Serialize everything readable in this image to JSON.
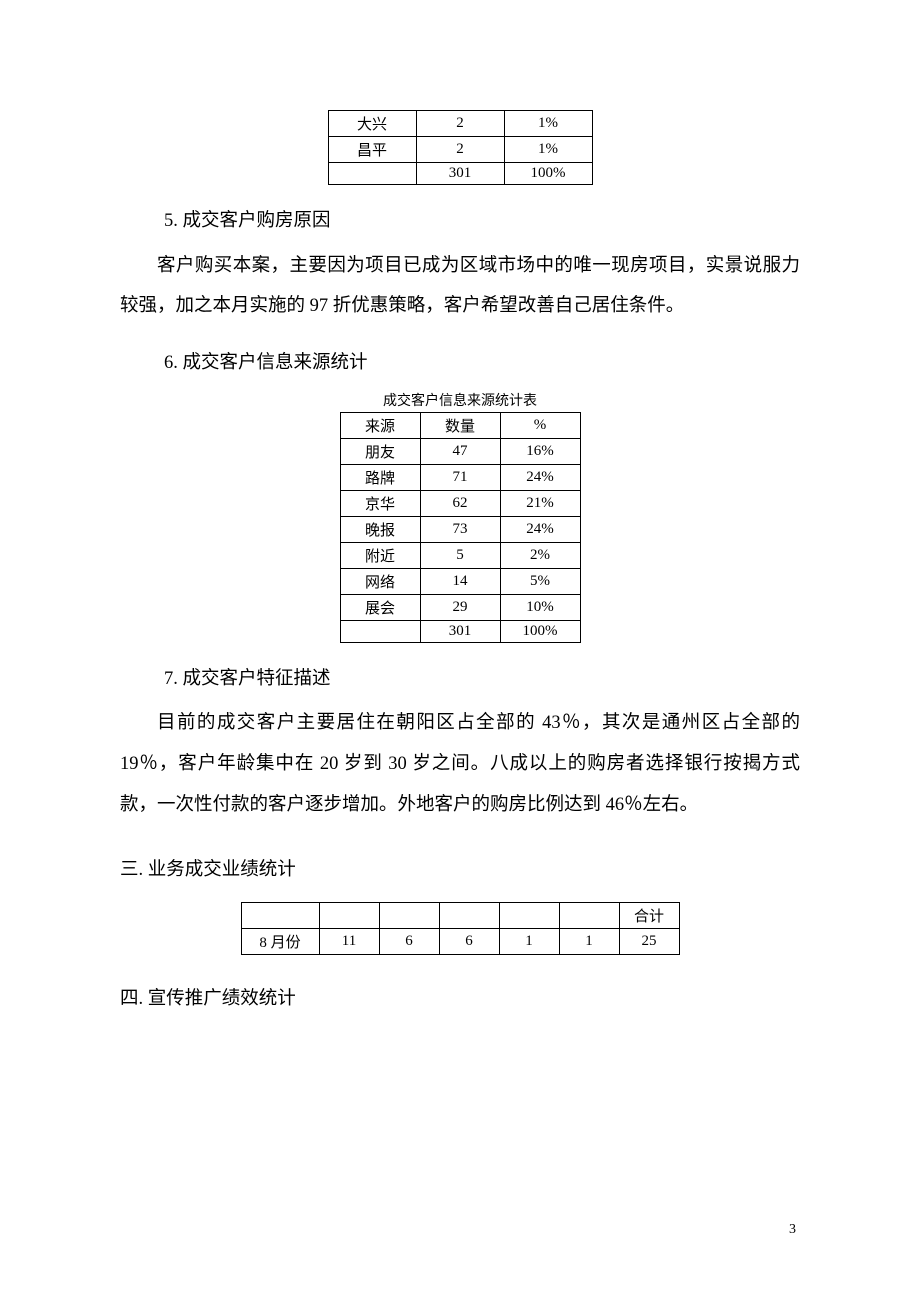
{
  "table1": {
    "rows": [
      {
        "c1": "大兴",
        "c2": "2",
        "c3": "1%"
      },
      {
        "c1": "昌平",
        "c2": "2",
        "c3": "1%"
      },
      {
        "c1": "",
        "c2": "301",
        "c3": "100%"
      }
    ]
  },
  "section5": {
    "heading": "5.  成交客户购房原因",
    "para": "客户购买本案，主要因为项目已成为区域市场中的唯一现房项目，实景说服力较强，加之本月实施的 97 折优惠策略，客户希望改善自己居住条件。"
  },
  "section6": {
    "heading": "6.  成交客户信息来源统计",
    "table_caption": "成交客户信息来源统计表",
    "header": {
      "c1": "来源",
      "c2": "数量",
      "c3": "%"
    },
    "rows": [
      {
        "c1": "朋友",
        "c2": "47",
        "c3": "16%"
      },
      {
        "c1": "路牌",
        "c2": "71",
        "c3": "24%"
      },
      {
        "c1": "京华",
        "c2": "62",
        "c3": "21%"
      },
      {
        "c1": "晚报",
        "c2": "73",
        "c3": "24%"
      },
      {
        "c1": "附近",
        "c2": "5",
        "c3": "2%"
      },
      {
        "c1": "网络",
        "c2": "14",
        "c3": "5%"
      },
      {
        "c1": "展会",
        "c2": "29",
        "c3": "10%"
      },
      {
        "c1": "",
        "c2": "301",
        "c3": "100%"
      }
    ]
  },
  "section7": {
    "heading": "7.  成交客户特征描述",
    "para": "目前的成交客户主要居住在朝阳区占全部的 43％，其次是通州区占全部的 19％，客户年龄集中在 20 岁到 30 岁之间。八成以上的购房者选择银行按揭方式款，一次性付款的客户逐步增加。外地客户的购房比例达到 46％左右。"
  },
  "section_three": {
    "heading": "三. 业务成交业绩统计",
    "header": {
      "c1": "",
      "c2": "",
      "c3": "",
      "c4": "",
      "c5": "",
      "c6": "",
      "ct": "合计"
    },
    "row": {
      "c1": "8 月份",
      "c2": "11",
      "c3": "6",
      "c4": "6",
      "c5": "1",
      "c6": "1",
      "ct": "25"
    }
  },
  "section_four": {
    "heading": "四. 宣传推广绩效统计"
  },
  "page_number": "3"
}
